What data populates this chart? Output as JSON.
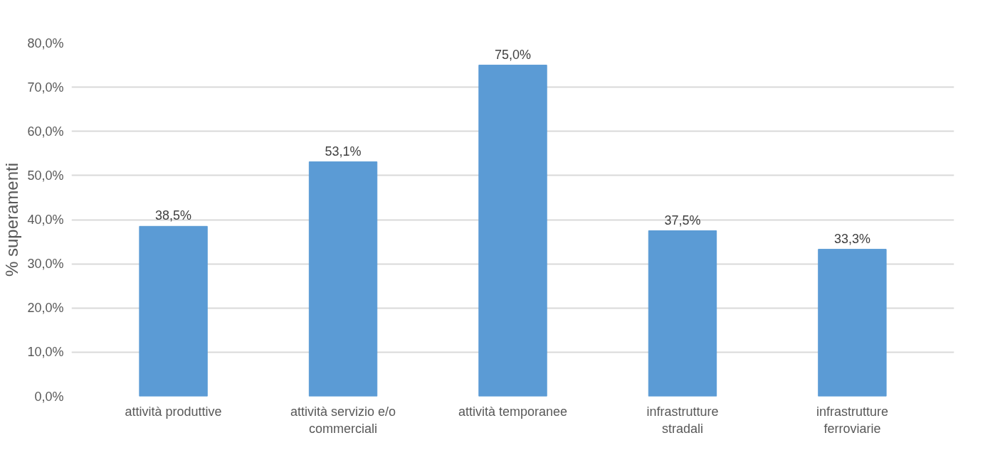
{
  "chart_data": {
    "type": "bar",
    "ylabel": "% superamenti",
    "categories": [
      "attività produttive",
      "attività servizio e/o commerciali",
      "attività temporanee",
      "infrastrutture stradali",
      "infrastrutture ferroviarie"
    ],
    "values": [
      38.5,
      53.1,
      75.0,
      37.5,
      33.3
    ],
    "value_labels": [
      "38,5%",
      "53,1%",
      "75,0%",
      "37,5%",
      "33,3%"
    ],
    "color": "#5b9bd5",
    "ylim": [
      0,
      80
    ],
    "yticks": [
      {
        "value": 0,
        "label": "0,0%"
      },
      {
        "value": 10,
        "label": "10,0%"
      },
      {
        "value": 20,
        "label": "20,0%"
      },
      {
        "value": 30,
        "label": "30,0%"
      },
      {
        "value": 40,
        "label": "40,0%"
      },
      {
        "value": 50,
        "label": "50,0%"
      },
      {
        "value": 60,
        "label": "60,0%"
      },
      {
        "value": 70,
        "label": "70,0%"
      },
      {
        "value": 80,
        "label": "80,0%"
      }
    ],
    "grid": "y"
  }
}
